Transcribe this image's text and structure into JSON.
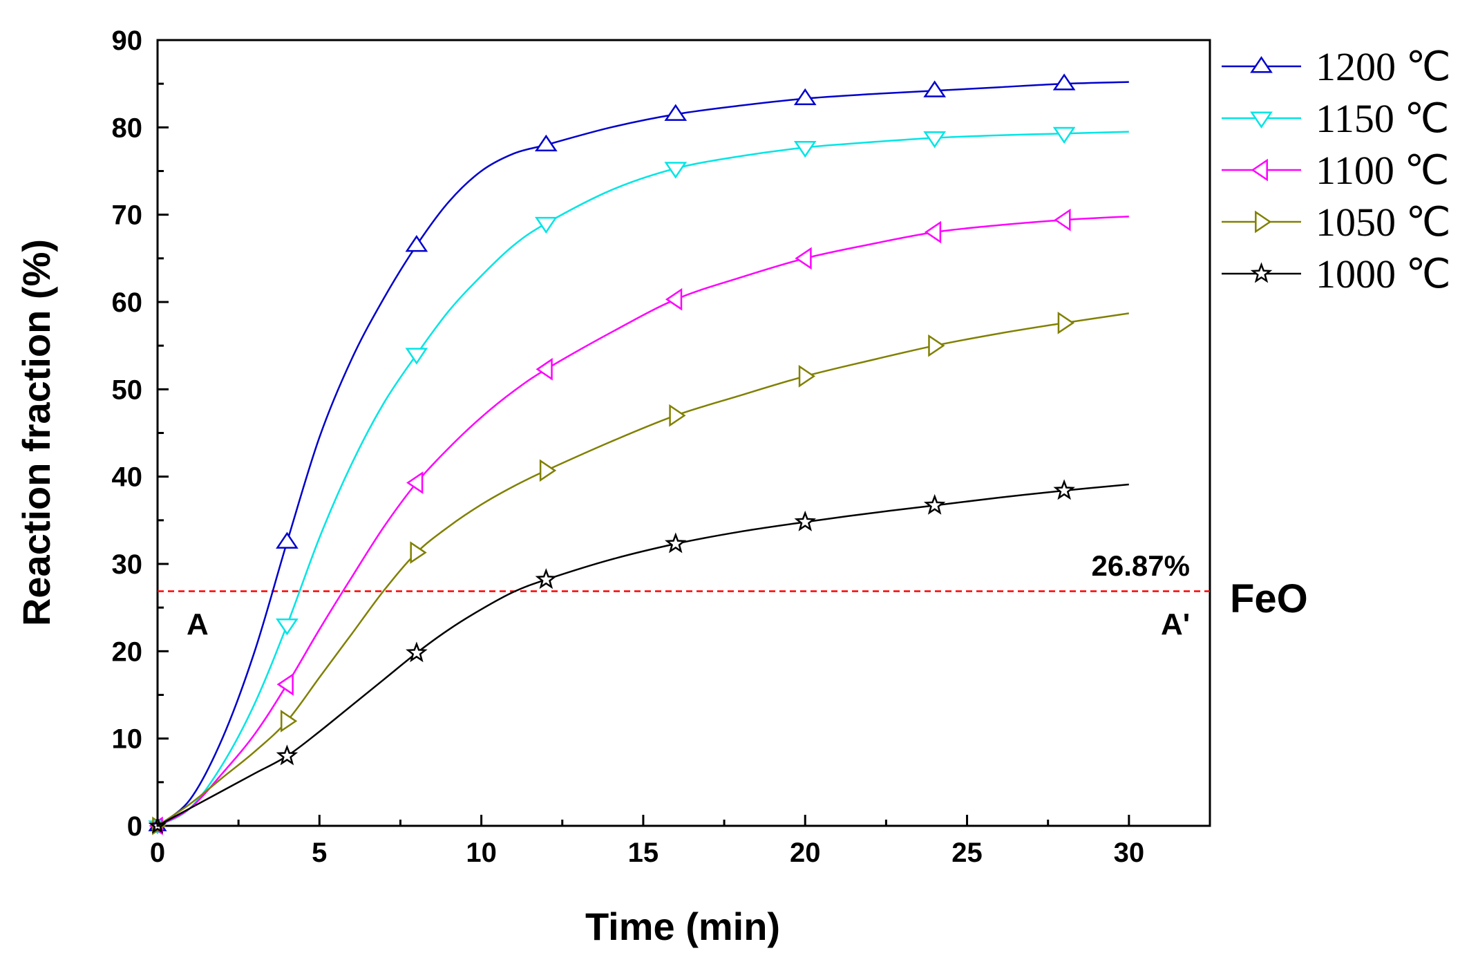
{
  "chart_data": {
    "type": "line",
    "title": "",
    "xlabel": "Time (min)",
    "ylabel": "Reaction fraction (%)",
    "xlim": [
      0,
      32.5
    ],
    "ylim": [
      0,
      90
    ],
    "xticks": [
      0,
      5,
      10,
      15,
      20,
      25,
      30
    ],
    "yticks": [
      0,
      10,
      20,
      30,
      40,
      50,
      60,
      70,
      80,
      90
    ],
    "grid": false,
    "legend_position": "outside-top-right",
    "series": [
      {
        "name": "1200 ℃",
        "color": "#0000cc",
        "marker": "triangle-up",
        "marker_x": [
          4,
          8,
          12,
          16,
          20,
          24,
          28
        ],
        "marker_y": [
          32.5,
          66.5,
          78.0,
          81.5,
          83.3,
          84.2,
          85.0
        ],
        "curve_x": [
          0,
          1,
          2,
          3,
          4,
          5,
          6,
          7,
          8,
          9,
          10,
          11,
          12,
          14,
          16,
          18,
          20,
          22,
          24,
          26,
          28,
          30
        ],
        "curve_y": [
          0,
          3,
          10,
          20,
          32.5,
          44.5,
          53.5,
          60.5,
          66.5,
          71.5,
          75.0,
          77.0,
          78.0,
          80.0,
          81.5,
          82.5,
          83.3,
          83.8,
          84.2,
          84.6,
          85.0,
          85.2
        ]
      },
      {
        "name": "1150 ℃",
        "color": "#00e5e5",
        "marker": "triangle-down",
        "marker_x": [
          4,
          8,
          12,
          16,
          20,
          24,
          28
        ],
        "marker_y": [
          23.0,
          54.0,
          69.0,
          75.3,
          77.7,
          78.8,
          79.3
        ],
        "curve_x": [
          0,
          1,
          2,
          3,
          4,
          5,
          6,
          7,
          8,
          9,
          10,
          11,
          12,
          14,
          16,
          18,
          20,
          22,
          24,
          26,
          28,
          30
        ],
        "curve_y": [
          0,
          2,
          7,
          14,
          23.0,
          33.0,
          41.5,
          48.5,
          54.0,
          59.0,
          63.0,
          66.5,
          69.0,
          72.8,
          75.3,
          76.7,
          77.7,
          78.3,
          78.8,
          79.1,
          79.3,
          79.5
        ]
      },
      {
        "name": "1100 ℃",
        "color": "#ff00ff",
        "marker": "triangle-left",
        "marker_x": [
          4,
          8,
          12,
          16,
          20,
          24,
          28
        ],
        "marker_y": [
          16.2,
          39.3,
          52.3,
          60.3,
          65.0,
          68.0,
          69.4
        ],
        "curve_x": [
          0,
          1,
          2,
          3,
          4,
          5,
          6,
          7,
          8,
          9,
          10,
          11,
          12,
          14,
          16,
          18,
          20,
          22,
          24,
          26,
          28,
          30
        ],
        "curve_y": [
          0,
          2,
          6,
          10.5,
          16.2,
          22.5,
          28.5,
          34.3,
          39.3,
          43.3,
          46.8,
          49.8,
          52.3,
          56.5,
          60.3,
          62.8,
          65.0,
          66.6,
          68.0,
          68.8,
          69.4,
          69.8
        ]
      },
      {
        "name": "1050 ℃",
        "color": "#808000",
        "marker": "triangle-right",
        "marker_x": [
          4,
          8,
          12,
          16,
          20,
          24,
          28
        ],
        "marker_y": [
          12.0,
          31.3,
          40.7,
          47.0,
          51.5,
          55.0,
          57.6
        ],
        "curve_x": [
          0,
          1,
          2,
          3,
          4,
          5,
          6,
          7,
          8,
          9,
          10,
          11,
          12,
          14,
          16,
          18,
          20,
          22,
          24,
          26,
          28,
          30
        ],
        "curve_y": [
          0,
          2.5,
          5.5,
          8.5,
          12.0,
          17.0,
          22.0,
          27.0,
          31.3,
          34.3,
          36.8,
          38.9,
          40.7,
          44.0,
          47.0,
          49.3,
          51.5,
          53.3,
          55.0,
          56.4,
          57.6,
          58.7
        ]
      },
      {
        "name": "1000 ℃",
        "color": "#000000",
        "marker": "star",
        "marker_x": [
          4,
          8,
          12,
          16,
          20,
          24,
          28
        ],
        "marker_y": [
          8.0,
          19.8,
          28.2,
          32.3,
          34.8,
          36.7,
          38.4
        ],
        "curve_x": [
          0,
          1,
          2,
          3,
          4,
          5,
          6,
          7,
          8,
          9,
          10,
          11,
          12,
          14,
          16,
          18,
          20,
          22,
          24,
          26,
          28,
          30
        ],
        "curve_y": [
          0,
          2,
          4,
          6,
          8.0,
          10.8,
          13.8,
          16.8,
          19.8,
          22.5,
          24.8,
          26.8,
          28.2,
          30.5,
          32.3,
          33.7,
          34.8,
          35.8,
          36.7,
          37.6,
          38.4,
          39.1
        ]
      }
    ],
    "reference_line": {
      "y": 26.87,
      "color": "#ff0000",
      "style": "dashed",
      "value_label": "26.87%",
      "side_label": "FeO",
      "left_label": "A",
      "right_label": "A'"
    }
  }
}
